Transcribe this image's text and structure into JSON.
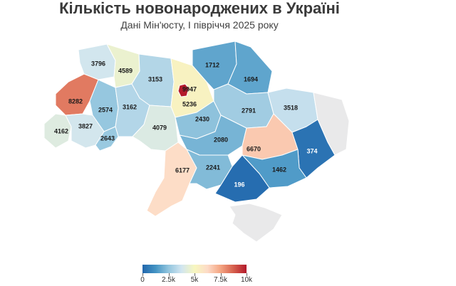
{
  "title": "Кількість новонароджених в Україні",
  "subtitle": "Дані Мін'юсту, I півріччя 2025 року",
  "legend": {
    "ticks": [
      "0",
      "2.5k",
      "5k",
      "7.5k",
      "10k"
    ],
    "min": 0,
    "max": 10000,
    "colors": [
      "#2166ac",
      "#4393c3",
      "#92c5de",
      "#d1e5f0",
      "#f7f7bf",
      "#fddbc7",
      "#f4a582",
      "#d6604d",
      "#b2182b"
    ]
  },
  "regions": [
    {
      "id": "volyn",
      "value": 3796
    },
    {
      "id": "rivne",
      "value": 4589
    },
    {
      "id": "zhytomyr",
      "value": 3153
    },
    {
      "id": "kyiv-city",
      "value": 9947
    },
    {
      "id": "kyiv-oblast",
      "value": 5236
    },
    {
      "id": "chernihiv",
      "value": 1712
    },
    {
      "id": "sumy",
      "value": 1694
    },
    {
      "id": "lviv",
      "value": 8282
    },
    {
      "id": "ternopil",
      "value": 2574
    },
    {
      "id": "khmelnytskyi",
      "value": 3162
    },
    {
      "id": "poltava",
      "value": 2791
    },
    {
      "id": "kharkiv",
      "value": 3518
    },
    {
      "id": "zakarpattia",
      "value": 4162
    },
    {
      "id": "ivano-frankivsk",
      "value": 3827
    },
    {
      "id": "chernivtsi",
      "value": 2643
    },
    {
      "id": "vinnytsia",
      "value": 4079
    },
    {
      "id": "cherkasy",
      "value": 2430
    },
    {
      "id": "kirovohrad",
      "value": 2080
    },
    {
      "id": "dnipropetrovsk",
      "value": 6670
    },
    {
      "id": "donetsk",
      "value": 374
    },
    {
      "id": "luhansk",
      "value": null
    },
    {
      "id": "odesa",
      "value": 6177
    },
    {
      "id": "mykolaiv",
      "value": 2241
    },
    {
      "id": "zaporizhzhia",
      "value": 1462
    },
    {
      "id": "kherson",
      "value": 196
    },
    {
      "id": "crimea",
      "value": null
    }
  ]
}
